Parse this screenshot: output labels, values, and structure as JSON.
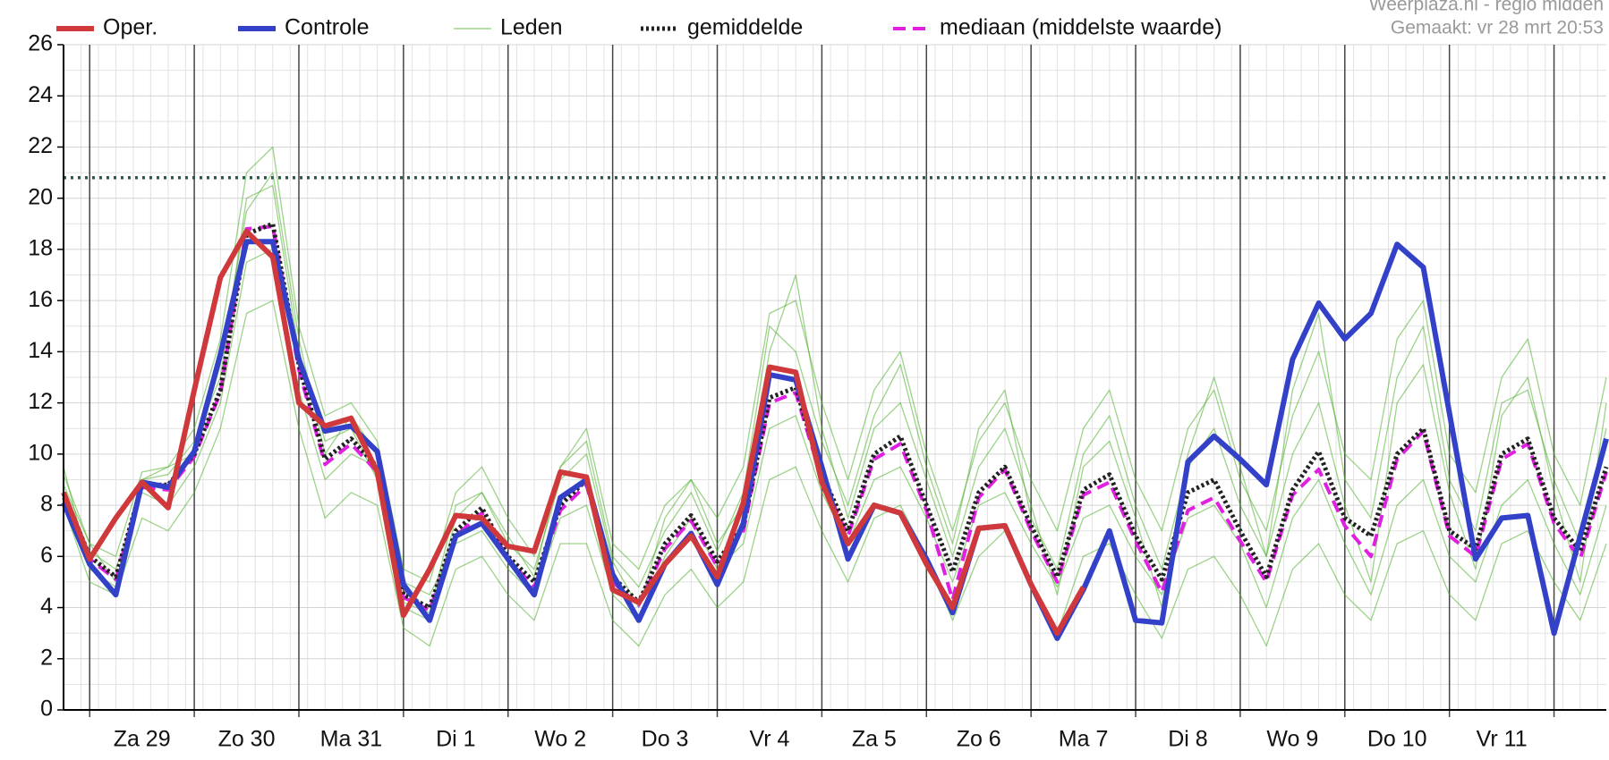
{
  "chart_data": {
    "type": "line",
    "source": "Weerplaza.nl - regio midden",
    "created": "Gemaakt: vr 28 mrt 20:53",
    "categories": [
      null,
      null,
      null,
      "Za 29",
      null,
      null,
      null,
      "Zo 30",
      null,
      null,
      null,
      "Ma 31",
      null,
      null,
      null,
      "Di 1",
      null,
      null,
      null,
      "Wo 2",
      null,
      null,
      null,
      "Do 3",
      null,
      null,
      null,
      "Vr 4",
      null,
      null,
      null,
      "Za 5",
      null,
      null,
      null,
      "Zo 6",
      null,
      null,
      null,
      "Ma 7",
      null,
      null,
      null,
      "Di 8",
      null,
      null,
      null,
      "Wo 9",
      null,
      null,
      null,
      "Do 10",
      null,
      null,
      null,
      "Vr 11",
      null,
      null,
      null,
      null
    ],
    "ylim": [
      0,
      26
    ],
    "yticks": [
      0,
      2,
      4,
      6,
      8,
      10,
      12,
      14,
      16,
      18,
      20,
      22,
      24,
      26
    ],
    "grid": true,
    "reference_line": {
      "value": 20.8,
      "color": "#1f5f4f"
    },
    "series": [
      {
        "name": "Oper.",
        "color": "#d0393b",
        "style": "solid",
        "values": [
          8.5,
          5.9,
          7.5,
          8.9,
          7.9,
          12.5,
          16.9,
          18.7,
          17.7,
          12.0,
          11.1,
          11.4,
          9.3,
          3.7,
          5.5,
          7.6,
          7.5,
          6.4,
          6.2,
          9.3,
          9.1,
          4.7,
          4.2,
          5.7,
          6.8,
          5.2,
          8.1,
          13.4,
          13.2,
          8.9,
          6.5,
          8.0,
          7.7,
          5.7,
          4.0,
          7.1,
          7.2,
          4.9,
          3.0,
          4.8,
          null,
          null,
          null,
          null,
          null,
          null,
          null,
          null,
          null,
          null,
          null,
          null,
          null,
          null,
          null,
          null,
          null,
          null,
          null,
          null
        ]
      },
      {
        "name": "Controle",
        "color": "#3340c8",
        "style": "solid",
        "values": [
          8.1,
          5.7,
          4.5,
          8.9,
          8.7,
          10.1,
          13.9,
          18.3,
          18.3,
          13.7,
          10.9,
          11.1,
          10.1,
          4.9,
          3.5,
          6.8,
          7.3,
          5.9,
          4.5,
          8.3,
          9.0,
          5.3,
          3.5,
          5.7,
          6.9,
          4.9,
          7.3,
          13.1,
          12.9,
          9.5,
          5.9,
          8.0,
          7.7,
          5.9,
          3.8,
          7.1,
          7.2,
          4.9,
          2.8,
          4.7,
          7.0,
          3.5,
          3.4,
          9.7,
          10.7,
          9.8,
          8.8,
          13.7,
          15.9,
          14.5,
          15.5,
          18.2,
          17.3,
          11.6,
          5.9,
          7.5,
          7.6,
          3.0,
          6.8,
          10.6
        ]
      },
      {
        "name": "Leden",
        "color": "#4caf2a",
        "style": "thin",
        "members": [
          [
            9.2,
            6.5,
            6.0,
            9.3,
            9.5,
            11.0,
            14.5,
            21.0,
            22.0,
            15.0,
            11.5,
            12.0,
            10.5,
            5.5,
            5.0,
            8.5,
            9.5,
            7.5,
            6.0,
            9.5,
            11.0,
            6.5,
            5.5,
            8.0,
            9.0,
            7.5,
            9.5,
            15.5,
            16.0,
            12.0,
            9.0,
            12.5,
            14.0,
            10.0,
            7.0,
            10.5,
            12.0,
            9.0,
            7.0,
            11.0,
            12.5,
            9.0,
            7.0,
            11.0,
            12.5,
            9.0,
            7.0,
            11.5,
            14.0,
            10.0,
            9.0,
            14.5,
            16.0,
            10.0,
            8.5,
            13.0,
            14.5,
            10.0,
            8.0,
            13.0
          ],
          [
            8.0,
            5.0,
            4.5,
            7.5,
            7.0,
            8.5,
            11.0,
            15.5,
            16.0,
            11.0,
            7.5,
            8.5,
            8.0,
            3.2,
            2.5,
            5.5,
            6.0,
            4.5,
            3.5,
            6.5,
            6.5,
            3.5,
            2.5,
            4.5,
            5.5,
            4.0,
            5.0,
            9.0,
            9.5,
            7.0,
            5.0,
            7.5,
            8.0,
            6.0,
            3.5,
            6.0,
            7.0,
            5.0,
            3.0,
            6.0,
            6.5,
            4.5,
            2.8,
            5.5,
            6.0,
            4.5,
            2.5,
            5.5,
            6.5,
            4.5,
            3.5,
            6.5,
            7.0,
            4.5,
            3.5,
            6.5,
            7.0,
            5.0,
            3.5,
            6.5
          ],
          [
            9.5,
            5.5,
            4.8,
            9.0,
            9.2,
            10.5,
            13.0,
            20.0,
            20.5,
            14.0,
            10.5,
            11.0,
            9.0,
            4.0,
            3.5,
            7.5,
            8.5,
            6.5,
            5.5,
            9.0,
            10.0,
            5.8,
            4.0,
            7.5,
            9.0,
            6.5,
            8.0,
            14.0,
            17.0,
            11.0,
            7.5,
            11.0,
            12.0,
            9.0,
            6.0,
            9.5,
            11.0,
            8.0,
            4.5,
            9.5,
            10.5,
            7.5,
            4.0,
            10.0,
            13.0,
            9.5,
            6.0,
            10.0,
            12.0,
            8.0,
            5.0,
            12.0,
            13.5,
            8.5,
            5.5,
            11.5,
            13.0,
            8.5,
            5.0,
            12.0
          ],
          [
            8.2,
            6.2,
            5.5,
            8.5,
            8.0,
            9.5,
            12.0,
            17.5,
            18.0,
            12.5,
            9.0,
            10.0,
            9.5,
            5.0,
            4.5,
            6.5,
            7.0,
            5.5,
            4.5,
            7.5,
            8.0,
            4.5,
            3.5,
            6.0,
            7.5,
            5.5,
            6.5,
            11.0,
            11.5,
            8.5,
            6.5,
            9.0,
            9.5,
            7.5,
            5.0,
            8.0,
            8.5,
            6.5,
            4.8,
            7.5,
            8.0,
            6.0,
            4.5,
            7.5,
            8.0,
            6.5,
            4.0,
            7.5,
            9.0,
            6.5,
            4.5,
            8.0,
            9.0,
            6.0,
            5.0,
            8.0,
            9.0,
            6.5,
            4.5,
            8.0
          ],
          [
            8.8,
            6.5,
            5.0,
            9.0,
            9.5,
            10.0,
            13.5,
            19.5,
            21.0,
            14.5,
            10.0,
            11.5,
            10.0,
            4.2,
            3.8,
            8.0,
            8.5,
            6.8,
            5.2,
            9.5,
            10.5,
            6.0,
            4.8,
            7.0,
            8.5,
            6.2,
            8.5,
            15.0,
            14.0,
            10.5,
            8.0,
            11.5,
            13.5,
            9.5,
            6.5,
            11.0,
            12.5,
            7.5,
            5.5,
            10.0,
            11.5,
            8.0,
            5.5,
            9.5,
            11.0,
            8.0,
            6.0,
            12.5,
            15.5,
            9.0,
            7.5,
            13.0,
            15.0,
            9.0,
            7.0,
            12.0,
            12.5,
            9.0,
            6.5,
            11.0
          ]
        ]
      },
      {
        "name": "gemiddelde",
        "color": "#222222",
        "style": "dotted",
        "values": [
          8.5,
          6.0,
          5.2,
          8.8,
          8.8,
          10.0,
          12.5,
          18.6,
          19.0,
          13.5,
          9.8,
          10.6,
          9.5,
          4.5,
          4.0,
          7.0,
          7.9,
          6.0,
          5.0,
          8.0,
          9.0,
          5.2,
          4.2,
          6.5,
          7.6,
          5.8,
          7.2,
          12.2,
          12.6,
          9.2,
          7.0,
          10.0,
          10.7,
          8.0,
          5.4,
          8.5,
          9.5,
          7.2,
          5.2,
          8.6,
          9.2,
          6.8,
          5.1,
          8.5,
          9.0,
          7.0,
          5.2,
          8.6,
          10.1,
          7.5,
          6.8,
          10.0,
          11.0,
          7.0,
          6.3,
          10.0,
          10.6,
          7.5,
          6.2,
          9.5
        ]
      },
      {
        "name": "mediaan (middelste waarde)",
        "color": "#e020e0",
        "style": "dashed",
        "values": [
          8.3,
          5.9,
          5.1,
          8.7,
          8.6,
          9.9,
          12.4,
          18.8,
          18.9,
          13.3,
          9.6,
          10.4,
          9.3,
          4.4,
          3.9,
          6.8,
          7.7,
          5.9,
          4.8,
          7.8,
          8.8,
          5.0,
          4.1,
          6.3,
          7.4,
          5.6,
          7.0,
          12.0,
          12.4,
          9.0,
          6.8,
          9.8,
          10.4,
          7.8,
          4.3,
          8.3,
          9.4,
          7.0,
          5.0,
          8.4,
          8.9,
          6.6,
          4.6,
          7.8,
          8.3,
          6.6,
          5.0,
          8.4,
          9.4,
          7.2,
          6.0,
          9.8,
          10.9,
          6.8,
          6.0,
          9.8,
          10.4,
          7.3,
          5.9,
          9.3
        ]
      }
    ]
  }
}
